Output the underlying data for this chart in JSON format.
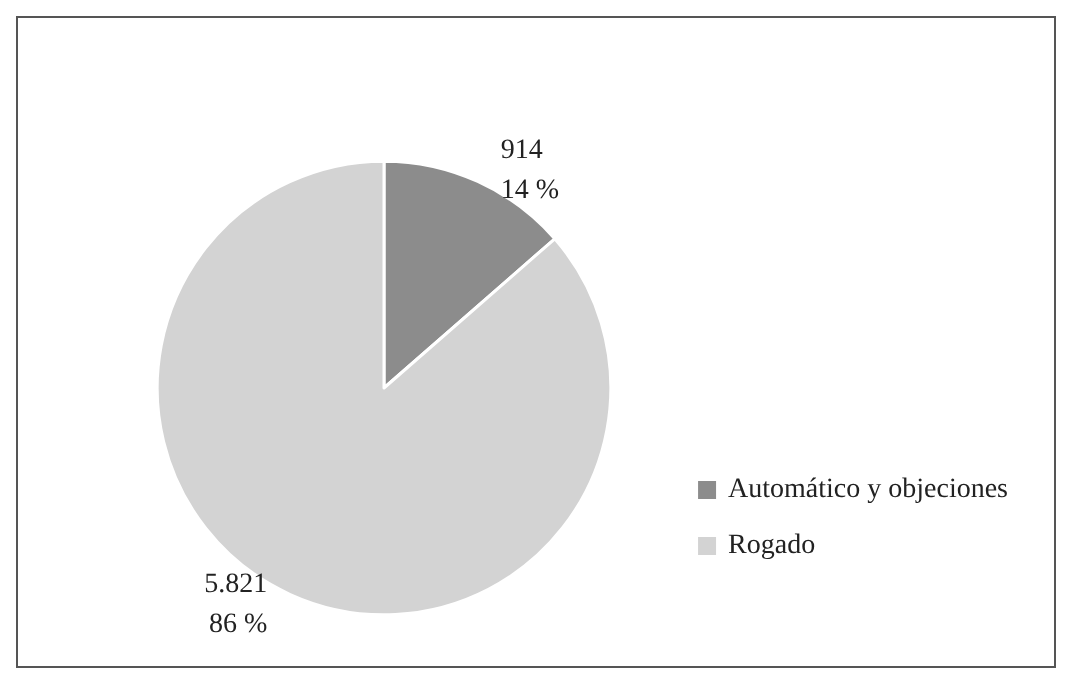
{
  "chart_data": {
    "type": "pie",
    "categories": [
      "Automático y objeciones",
      "Rogado"
    ],
    "values": [
      914,
      5821
    ],
    "colors": [
      "#8c8c8c",
      "#d3d3d3"
    ],
    "value_labels": [
      "914\n14 %",
      "5.821\n86 %"
    ],
    "legend": "bottom right"
  }
}
